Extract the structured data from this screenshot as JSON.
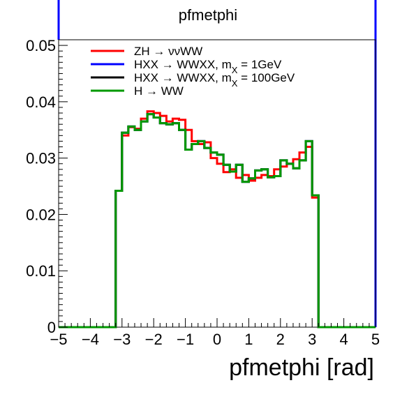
{
  "chart_data": {
    "type": "line",
    "title": "pfmetphi",
    "xlabel": "pfmetphi [rad]",
    "ylabel": "",
    "xlim": [
      -5,
      5
    ],
    "ylim": [
      0,
      0.051
    ],
    "xticks": [
      -5,
      -4,
      -3,
      -2,
      -1,
      0,
      1,
      2,
      3,
      4,
      5
    ],
    "xtick_labels": [
      "−5",
      "−4",
      "−3",
      "−2",
      "−1",
      "0",
      "1",
      "2",
      "3",
      "4",
      "5"
    ],
    "yticks": [
      0,
      0.01,
      0.02,
      0.03,
      0.04,
      0.05
    ],
    "ytick_labels": [
      "0",
      "0.01",
      "0.02",
      "0.03",
      "0.04",
      "0.05"
    ],
    "legend_placement": "top-left",
    "grid": false,
    "bins": {
      "edges": [
        -3.2,
        -3.0,
        -2.8,
        -2.6,
        -2.4,
        -2.2,
        -2.0,
        -1.8,
        -1.6,
        -1.4,
        -1.2,
        -1.0,
        -0.8,
        -0.6,
        -0.4,
        -0.2,
        0.0,
        0.2,
        0.4,
        0.6,
        0.8,
        1.0,
        1.2,
        1.4,
        1.6,
        1.8,
        2.0,
        2.2,
        2.4,
        2.6,
        2.8,
        3.0,
        3.2
      ],
      "x_min": -5,
      "x_max": 5
    },
    "series": [
      {
        "name": "ZH → ννWW",
        "color": "#ff0000",
        "values": [
          0.0242,
          0.034,
          0.0355,
          0.0352,
          0.037,
          0.0383,
          0.038,
          0.0375,
          0.0365,
          0.037,
          0.0368,
          0.035,
          0.033,
          0.0325,
          0.0328,
          0.03,
          0.029,
          0.0275,
          0.028,
          0.0265,
          0.027,
          0.026,
          0.0265,
          0.027,
          0.0268,
          0.028,
          0.0285,
          0.029,
          0.0298,
          0.031,
          0.032,
          0.023
        ]
      },
      {
        "name": "HXX → WWXX, m",
        "name_sub": "X",
        "name_suffix": " = 1GeV",
        "color": "#0000ff",
        "values": [
          0.0242,
          0.0345,
          0.0356,
          0.035,
          0.0365,
          0.0378,
          0.0372,
          0.0362,
          0.036,
          0.0362,
          0.035,
          0.0315,
          0.0325,
          0.033,
          0.0318,
          0.031,
          0.0306,
          0.0288,
          0.0276,
          0.0288,
          0.0258,
          0.0264,
          0.0278,
          0.028,
          0.0266,
          0.0268,
          0.0296,
          0.029,
          0.0282,
          0.0296,
          0.033,
          0.0234
        ]
      },
      {
        "name": "HXX → WWXX, m",
        "name_sub": "X",
        "name_suffix": " = 100GeV",
        "color": "#000000",
        "values": [
          0.0242,
          0.0345,
          0.0356,
          0.035,
          0.0365,
          0.0378,
          0.0372,
          0.0362,
          0.036,
          0.0362,
          0.035,
          0.0315,
          0.0325,
          0.033,
          0.0318,
          0.031,
          0.0306,
          0.0288,
          0.0276,
          0.0288,
          0.0258,
          0.0264,
          0.0278,
          0.028,
          0.0266,
          0.0268,
          0.0296,
          0.029,
          0.0282,
          0.0296,
          0.033,
          0.0234
        ]
      },
      {
        "name": "H → WW",
        "color": "#009900",
        "values": [
          0.0242,
          0.0345,
          0.0356,
          0.035,
          0.0365,
          0.0378,
          0.0372,
          0.0362,
          0.036,
          0.0362,
          0.035,
          0.0315,
          0.0325,
          0.033,
          0.0318,
          0.031,
          0.0306,
          0.0288,
          0.0276,
          0.0288,
          0.0258,
          0.0264,
          0.0278,
          0.028,
          0.0266,
          0.0268,
          0.0296,
          0.029,
          0.0282,
          0.0296,
          0.033,
          0.0234
        ]
      }
    ]
  }
}
